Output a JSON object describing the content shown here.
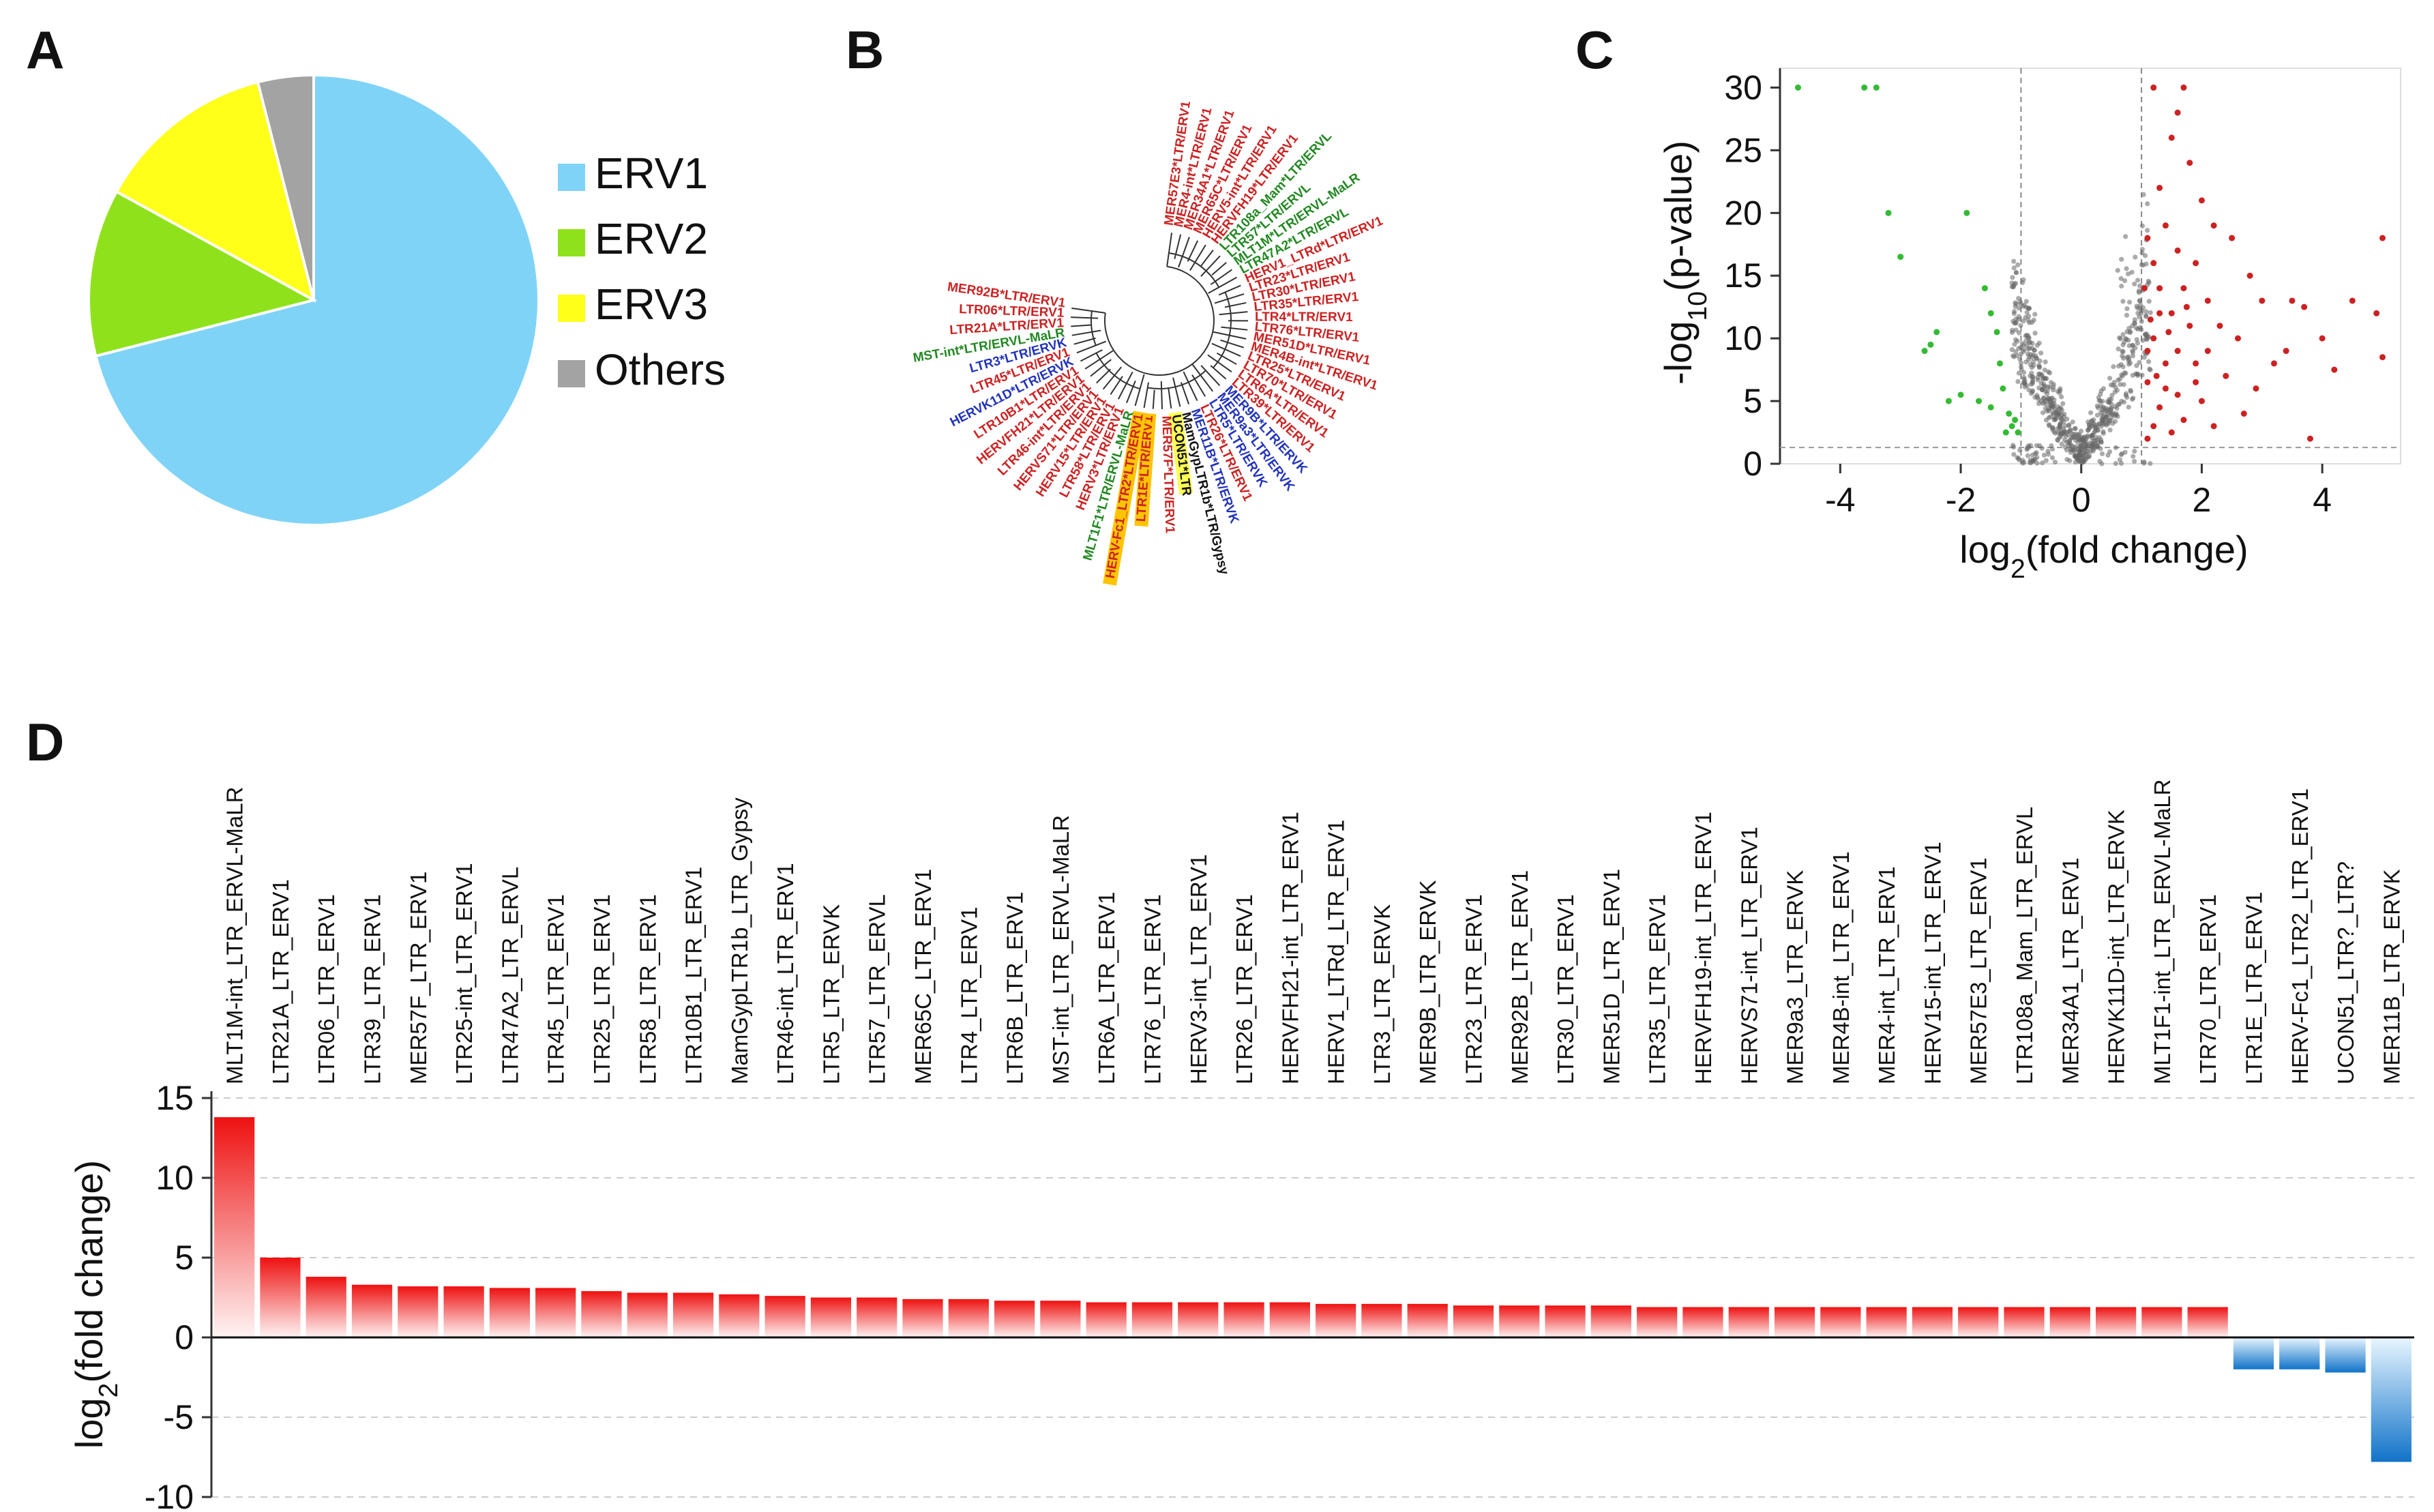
{
  "panels": {
    "a": "A",
    "b": "B",
    "c": "C",
    "d": "D"
  },
  "chart_data": [
    {
      "type": "pie",
      "panel": "A",
      "labels": [
        "ERV1",
        "ERV2",
        "ERV3",
        "Others"
      ],
      "values": [
        71,
        12,
        13,
        4
      ],
      "colors": [
        "#7fd3f7",
        "#8fe21b",
        "#ffff1a",
        "#a3a3a3"
      ]
    },
    {
      "type": "tree",
      "panel": "B",
      "leaves": [
        {
          "label": "MER57E3*LTR/ERV1",
          "color": "#cc2222"
        },
        {
          "label": "MER4-int*LTR/ERV1",
          "color": "#cc2222"
        },
        {
          "label": "MER34A1*LTR/ERV1",
          "color": "#cc2222"
        },
        {
          "label": "MER65C*LTR/ERV1",
          "color": "#cc2222"
        },
        {
          "label": "HERV5-int*LTR/ERV1",
          "color": "#cc2222"
        },
        {
          "label": "HERVFH19*LTR/ERV1",
          "color": "#cc2222"
        },
        {
          "label": "LTR108a_Mam*LTR/ERVL",
          "color": "#228822"
        },
        {
          "label": "LTR57*LTR/ERVL",
          "color": "#228822"
        },
        {
          "label": "MLT1M*LTR/ERVL-MaLR",
          "color": "#228822"
        },
        {
          "label": "LTR47A2*LTR/ERVL",
          "color": "#228822"
        },
        {
          "label": "HERV1_LTRd*LTR/ERV1",
          "color": "#cc2222"
        },
        {
          "label": "LTR23*LTR/ERV1",
          "color": "#cc2222"
        },
        {
          "label": "LTR30*LTR/ERV1",
          "color": "#cc2222"
        },
        {
          "label": "LTR35*LTR/ERV1",
          "color": "#cc2222"
        },
        {
          "label": "LTR4*LTR/ERV1",
          "color": "#cc2222"
        },
        {
          "label": "LTR76*LTR/ERV1",
          "color": "#cc2222"
        },
        {
          "label": "MER51D*LTR/ERV1",
          "color": "#cc2222"
        },
        {
          "label": "MER4B-int*LTR/ERV1",
          "color": "#cc2222"
        },
        {
          "label": "LTR25*LTR/ERV1",
          "color": "#cc2222"
        },
        {
          "label": "LTR70*LTR/ERV1",
          "color": "#cc2222"
        },
        {
          "label": "LTR6A*LTR/ERV1",
          "color": "#cc2222"
        },
        {
          "label": "LTR39*LTR/ERV1",
          "color": "#cc2222"
        },
        {
          "label": "MER9B*LTR/ERVK",
          "color": "#2233bb"
        },
        {
          "label": "MER9a3*LTR/ERVK",
          "color": "#2233bb"
        },
        {
          "label": "LTR5*LTR/ERVK",
          "color": "#2233bb"
        },
        {
          "label": "LTR26*LTR/ERV1",
          "color": "#cc2222"
        },
        {
          "label": "MER11B*LTR/ERVK",
          "color": "#2233bb"
        },
        {
          "label": "MamGypLTR1b*LTR/Gypsy",
          "color": "#111111"
        },
        {
          "label": "UCON51*LTR",
          "color": "#111111",
          "highlight": "#ffff55"
        },
        {
          "label": "MER57F*LTR/ERV1",
          "color": "#cc2222"
        },
        {
          "label": "LTR1E*LTR/ERV1",
          "color": "#cc2222",
          "highlight": "#ffc400"
        },
        {
          "label": "HERV-Fc1_LTR2*LTR/ERV1",
          "color": "#cc2222",
          "highlight": "#ffc400"
        },
        {
          "label": "MLT1F1*LTR/ERVL-MaLR",
          "color": "#228822"
        },
        {
          "label": "HERV3*LTR/ERV1",
          "color": "#cc2222"
        },
        {
          "label": "LTR58*LTR/ERV1",
          "color": "#cc2222"
        },
        {
          "label": "HERV15*LTR/ERV1",
          "color": "#cc2222"
        },
        {
          "label": "HERVS71*LTR/ERV1",
          "color": "#cc2222"
        },
        {
          "label": "LTR46-int*LTR/ERV1",
          "color": "#cc2222"
        },
        {
          "label": "HERVFH21*LTR/ERV1",
          "color": "#cc2222"
        },
        {
          "label": "LTR10B1*LTR/ERV1",
          "color": "#cc2222"
        },
        {
          "label": "HERVK11D*LTR/ERVK",
          "color": "#2233bb"
        },
        {
          "label": "LTR45*LTR/ERV1",
          "color": "#cc2222"
        },
        {
          "label": "LTR3*LTR/ERVK",
          "color": "#2233bb"
        },
        {
          "label": "MST-int*LTR/ERVL-MaLR",
          "color": "#228822"
        },
        {
          "label": "LTR21A*LTR/ERV1",
          "color": "#cc2222"
        },
        {
          "label": "LTR06*LTR/ERV1",
          "color": "#cc2222"
        },
        {
          "label": "MER92B*LTR/ERV1",
          "color": "#cc2222"
        }
      ]
    },
    {
      "type": "scatter",
      "panel": "C",
      "xlabel_main": "log",
      "xlabel_sub": "2",
      "xlabel_rest": "(fold change)",
      "ylabel_pre": "-log",
      "ylabel_sub": "10",
      "ylabel_rest": "(p-value)",
      "xlim": [
        -5,
        5.3
      ],
      "ylim": [
        0,
        31
      ],
      "xticks": [
        -4,
        -2,
        0,
        2,
        4
      ],
      "xtick_labels": [
        "-4",
        "-2",
        "0",
        "2",
        "4"
      ],
      "yticks": [
        0,
        5,
        10,
        15,
        20,
        25,
        30
      ],
      "ytick_labels": [
        "0",
        "5",
        "10",
        "15",
        "20",
        "25",
        "30"
      ],
      "thresholds": {
        "x": [
          -1,
          1
        ],
        "y": 1.3
      },
      "colors": {
        "up": "#cc2222",
        "down": "#33bb33",
        "ns": "#666666"
      },
      "down_points": [
        [
          -4.7,
          30
        ],
        [
          -3.6,
          30
        ],
        [
          -3.4,
          30
        ],
        [
          -3.2,
          20
        ],
        [
          -3.0,
          16.5
        ],
        [
          -2.6,
          9
        ],
        [
          -2.5,
          9.5
        ],
        [
          -2.4,
          10.5
        ],
        [
          -1.9,
          20
        ],
        [
          -1.6,
          14
        ],
        [
          -1.5,
          12
        ],
        [
          -1.4,
          10.5
        ],
        [
          -1.35,
          8
        ],
        [
          -1.3,
          6
        ],
        [
          -1.2,
          4
        ],
        [
          -1.1,
          3.5
        ],
        [
          -1.5,
          4.5
        ],
        [
          -1.7,
          5
        ],
        [
          -2.0,
          5.5
        ],
        [
          -2.2,
          5
        ],
        [
          -1.25,
          2.5
        ],
        [
          -1.15,
          3
        ],
        [
          -1.05,
          2.5
        ]
      ],
      "up_points": [
        [
          1.2,
          30
        ],
        [
          1.7,
          30
        ],
        [
          1.6,
          28
        ],
        [
          1.5,
          26
        ],
        [
          1.8,
          24
        ],
        [
          1.3,
          22
        ],
        [
          2.0,
          21
        ],
        [
          2.2,
          19
        ],
        [
          1.4,
          19
        ],
        [
          1.1,
          18
        ],
        [
          2.5,
          18
        ],
        [
          1.6,
          17
        ],
        [
          1.2,
          16
        ],
        [
          1.9,
          16
        ],
        [
          2.8,
          15
        ],
        [
          1.3,
          14
        ],
        [
          1.7,
          14
        ],
        [
          2.1,
          13
        ],
        [
          3.0,
          13
        ],
        [
          3.5,
          13
        ],
        [
          3.7,
          12.5
        ],
        [
          4.5,
          13
        ],
        [
          5.0,
          18
        ],
        [
          4.9,
          12
        ],
        [
          1.5,
          12
        ],
        [
          1.8,
          11
        ],
        [
          2.3,
          11
        ],
        [
          1.2,
          10
        ],
        [
          2.6,
          10
        ],
        [
          3.4,
          9
        ],
        [
          4.0,
          10
        ],
        [
          5.0,
          8.5
        ],
        [
          4.2,
          7.5
        ],
        [
          3.2,
          8
        ],
        [
          1.4,
          8
        ],
        [
          1.9,
          8
        ],
        [
          2.4,
          7
        ],
        [
          1.1,
          6.5
        ],
        [
          1.6,
          5.5
        ],
        [
          2.0,
          5
        ],
        [
          1.3,
          4.5
        ],
        [
          1.7,
          3.5
        ],
        [
          1.2,
          3
        ],
        [
          1.5,
          2.5
        ],
        [
          1.1,
          2
        ],
        [
          3.8,
          2
        ],
        [
          2.2,
          3
        ],
        [
          2.7,
          4
        ],
        [
          1.9,
          6.5
        ],
        [
          1.4,
          6
        ],
        [
          1.1,
          9
        ],
        [
          1.3,
          12
        ],
        [
          1.05,
          14
        ],
        [
          2.9,
          6
        ],
        [
          2.1,
          9
        ],
        [
          1.6,
          9
        ],
        [
          1.25,
          7
        ],
        [
          1.45,
          10.5
        ],
        [
          1.75,
          12.5
        ],
        [
          1.15,
          11.5
        ]
      ]
    },
    {
      "type": "bar",
      "panel": "D",
      "ylabel_main": "log",
      "ylabel_sub": "2",
      "ylabel_rest": "(fold change)",
      "ylim": [
        -10,
        15
      ],
      "yticks": [
        -10,
        -5,
        0,
        5,
        10,
        15
      ],
      "ytick_labels": [
        "-10",
        "-5",
        "0",
        "5",
        "10",
        "15"
      ],
      "colors": {
        "up": "#ee1111",
        "down": "#1188dd"
      },
      "categories": [
        "MLT1M-int_LTR_ERVL-MaLR",
        "LTR21A_LTR_ERV1",
        "LTR06_LTR_ERV1",
        "LTR39_LTR_ERV1",
        "MER57F_LTR_ERV1",
        "LTR25-int_LTR_ERV1",
        "LTR47A2_LTR_ERVL",
        "LTR45_LTR_ERV1",
        "LTR25_LTR_ERV1",
        "LTR58_LTR_ERV1",
        "LTR10B1_LTR_ERV1",
        "MamGypLTR1b_LTR_Gypsy",
        "LTR46-int_LTR_ERV1",
        "LTR5_LTR_ERVK",
        "LTR57_LTR_ERVL",
        "MER65C_LTR_ERV1",
        "LTR4_LTR_ERV1",
        "LTR6B_LTR_ERV1",
        "MST-int_LTR_ERVL-MaLR",
        "LTR6A_LTR_ERV1",
        "LTR76_LTR_ERV1",
        "HERV3-int_LTR_ERV1",
        "LTR26_LTR_ERV1",
        "HERVFH21-int_LTR_ERV1",
        "HERV1_LTRd_LTR_ERV1",
        "LTR3_LTR_ERVK",
        "MER9B_LTR_ERVK",
        "LTR23_LTR_ERV1",
        "MER92B_LTR_ERV1",
        "LTR30_LTR_ERV1",
        "MER51D_LTR_ERV1",
        "LTR35_LTR_ERV1",
        "HERVFH19-int_LTR_ERV1",
        "HERVS71-int_LTR_ERV1",
        "MER9a3_LTR_ERVK",
        "MER4B-int_LTR_ERV1",
        "MER4-int_LTR_ERV1",
        "HERV15-int_LTR_ERV1",
        "MER57E3_LTR_ERV1",
        "LTR108a_Mam_LTR_ERVL",
        "MER34A1_LTR_ERV1",
        "HERVK11D-int_LTR_ERVK",
        "MLT1F1-int_LTR_ERVL-MaLR",
        "LTR70_LTR_ERV1",
        "LTR1E_LTR_ERV1",
        "HERV-Fc1_LTR2_LTR_ERV1",
        "UCON51_LTR?_LTR?",
        "MER11B_LTR_ERVK"
      ],
      "values": [
        13.8,
        5.0,
        3.8,
        3.3,
        3.2,
        3.2,
        3.1,
        3.1,
        2.9,
        2.8,
        2.8,
        2.7,
        2.6,
        2.5,
        2.5,
        2.4,
        2.4,
        2.3,
        2.3,
        2.2,
        2.2,
        2.2,
        2.2,
        2.2,
        2.1,
        2.1,
        2.1,
        2.0,
        2.0,
        2.0,
        2.0,
        1.9,
        1.9,
        1.9,
        1.9,
        1.9,
        1.9,
        1.9,
        1.9,
        1.9,
        1.9,
        1.9,
        1.9,
        1.9,
        -2.0,
        -2.0,
        -2.2,
        -7.8
      ]
    }
  ]
}
